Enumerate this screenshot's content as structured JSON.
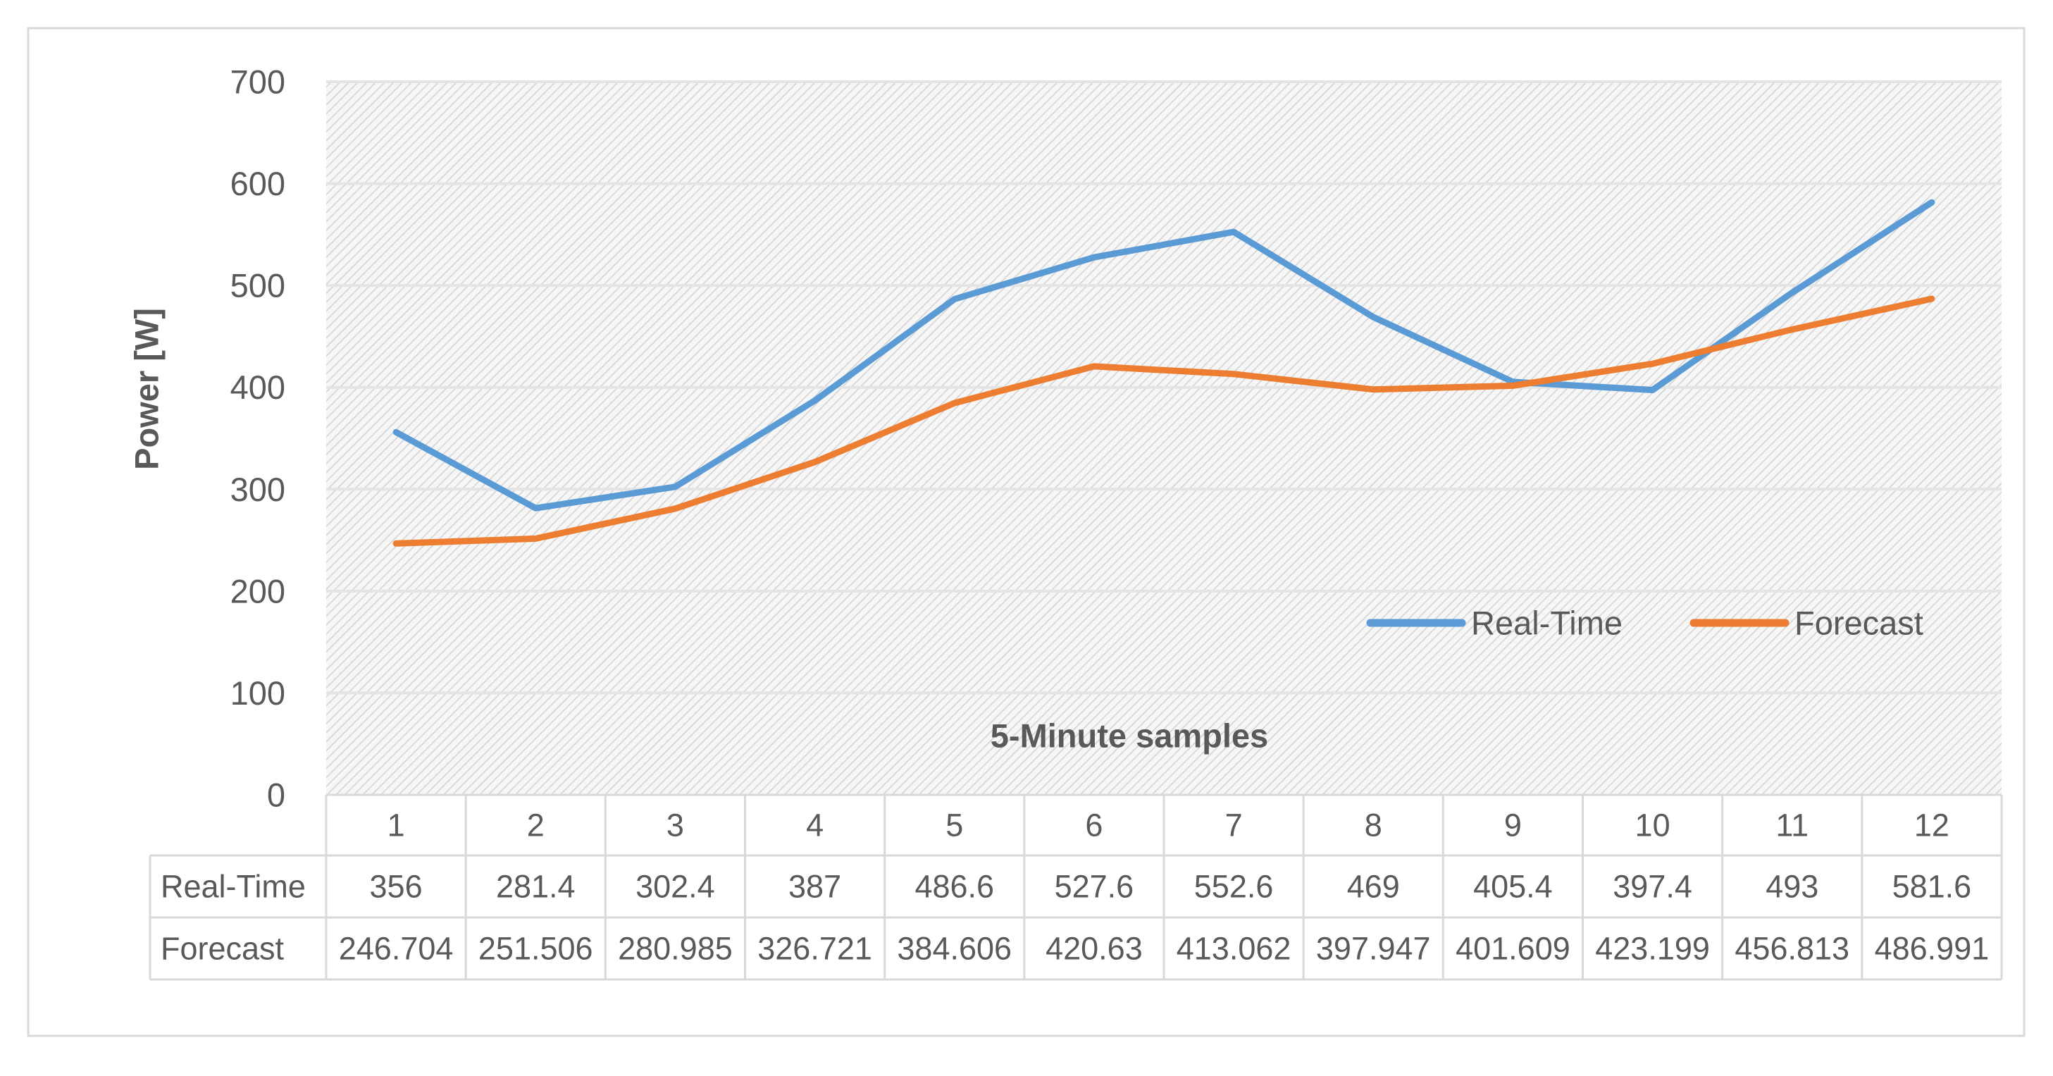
{
  "chart_data": {
    "type": "line",
    "title": "",
    "xlabel": "5-Minute samples",
    "ylabel": "Power [W]",
    "ylim": [
      0,
      700
    ],
    "yticks": [
      0,
      100,
      200,
      300,
      400,
      500,
      600,
      700
    ],
    "categories": [
      "1",
      "2",
      "3",
      "4",
      "5",
      "6",
      "7",
      "8",
      "9",
      "10",
      "11",
      "12"
    ],
    "series": [
      {
        "name": "Real-Time",
        "color": "#5B9BD5",
        "values": [
          356,
          281.4,
          302.4,
          387,
          486.6,
          527.6,
          552.6,
          469,
          405.4,
          397.4,
          493,
          581.6
        ],
        "labels": [
          "356",
          "281.4",
          "302.4",
          "387",
          "486.6",
          "527.6",
          "552.6",
          "469",
          "405.4",
          "397.4",
          "493",
          "581.6"
        ]
      },
      {
        "name": "Forecast",
        "color": "#ED7D31",
        "values": [
          246.704,
          251.506,
          280.985,
          326.721,
          384.606,
          420.63,
          413.062,
          397.947,
          401.609,
          423.199,
          456.813,
          486.991
        ],
        "labels": [
          "246.704",
          "251.506",
          "280.985",
          "326.721",
          "384.606",
          "420.63",
          "413.062",
          "397.947",
          "401.609",
          "423.199",
          "456.813",
          "486.991"
        ]
      }
    ],
    "legend_position": "inside-right",
    "grid": true,
    "data_table": true
  }
}
